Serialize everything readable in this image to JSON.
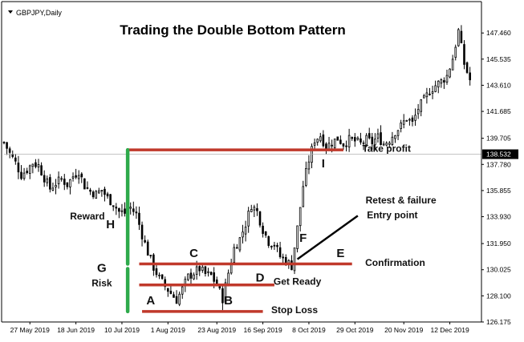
{
  "chart_data": {
    "type": "candlestick",
    "symbol_label": "GBPJPY,Daily",
    "title": "Trading the Double Bottom Pattern",
    "ylim": [
      126.175,
      149.3
    ],
    "xlim": [
      0,
      166
    ],
    "y_ticks": [
      "147.460",
      "145.535",
      "143.610",
      "141.685",
      "139.705",
      "137.780",
      "135.855",
      "133.930",
      "131.950",
      "130.025",
      "128.100",
      "126.175"
    ],
    "x_ticks": [
      {
        "x": 9,
        "label": "27 May 2019"
      },
      {
        "x": 25,
        "label": "18 Jun 2019"
      },
      {
        "x": 41,
        "label": "10 Jul 2019"
      },
      {
        "x": 57,
        "label": "1 Aug 2019"
      },
      {
        "x": 74,
        "label": "23 Aug 2019"
      },
      {
        "x": 90,
        "label": "16 Sep 2019"
      },
      {
        "x": 106,
        "label": "8 Oct 2019"
      },
      {
        "x": 122,
        "label": "29 Oct 2019"
      },
      {
        "x": 139,
        "label": "20 Nov 2019"
      },
      {
        "x": 155,
        "label": "12 Dec 2019"
      }
    ],
    "current_price": "138.532",
    "current_price_value": 138.532,
    "close_series": [
      {
        "x": 0,
        "y": 139.4
      },
      {
        "x": 2,
        "y": 138.6
      },
      {
        "x": 4,
        "y": 137.9
      },
      {
        "x": 6,
        "y": 137.0
      },
      {
        "x": 8,
        "y": 137.4
      },
      {
        "x": 10,
        "y": 137.9
      },
      {
        "x": 12,
        "y": 137.7
      },
      {
        "x": 14,
        "y": 136.8
      },
      {
        "x": 16,
        "y": 136.0
      },
      {
        "x": 18,
        "y": 136.4
      },
      {
        "x": 20,
        "y": 136.7
      },
      {
        "x": 22,
        "y": 136.3
      },
      {
        "x": 24,
        "y": 136.9
      },
      {
        "x": 26,
        "y": 137.3
      },
      {
        "x": 28,
        "y": 136.2
      },
      {
        "x": 30,
        "y": 135.8
      },
      {
        "x": 32,
        "y": 135.6
      },
      {
        "x": 34,
        "y": 135.9
      },
      {
        "x": 36,
        "y": 135.3
      },
      {
        "x": 38,
        "y": 134.9
      },
      {
        "x": 40,
        "y": 134.3
      },
      {
        "x": 42,
        "y": 134.2
      },
      {
        "x": 44,
        "y": 134.6
      },
      {
        "x": 46,
        "y": 134.1
      },
      {
        "x": 48,
        "y": 132.6
      },
      {
        "x": 50,
        "y": 131.3
      },
      {
        "x": 52,
        "y": 130.2
      },
      {
        "x": 54,
        "y": 129.4
      },
      {
        "x": 56,
        "y": 128.8
      },
      {
        "x": 58,
        "y": 128.3
      },
      {
        "x": 60,
        "y": 127.8
      },
      {
        "x": 62,
        "y": 128.6
      },
      {
        "x": 64,
        "y": 129.5
      },
      {
        "x": 66,
        "y": 129.8
      },
      {
        "x": 68,
        "y": 130.1
      },
      {
        "x": 70,
        "y": 129.7
      },
      {
        "x": 72,
        "y": 129.6
      },
      {
        "x": 74,
        "y": 128.9
      },
      {
        "x": 76,
        "y": 127.9
      },
      {
        "x": 78,
        "y": 129.8
      },
      {
        "x": 80,
        "y": 131.6
      },
      {
        "x": 82,
        "y": 132.3
      },
      {
        "x": 84,
        "y": 133.4
      },
      {
        "x": 86,
        "y": 134.8
      },
      {
        "x": 88,
        "y": 134.3
      },
      {
        "x": 90,
        "y": 133.0
      },
      {
        "x": 92,
        "y": 132.1
      },
      {
        "x": 94,
        "y": 131.9
      },
      {
        "x": 96,
        "y": 131.0
      },
      {
        "x": 98,
        "y": 130.7
      },
      {
        "x": 100,
        "y": 130.3
      },
      {
        "x": 102,
        "y": 133.1
      },
      {
        "x": 104,
        "y": 136.2
      },
      {
        "x": 106,
        "y": 138.1
      },
      {
        "x": 108,
        "y": 139.6
      },
      {
        "x": 110,
        "y": 139.9
      },
      {
        "x": 112,
        "y": 139.1
      },
      {
        "x": 114,
        "y": 139.4
      },
      {
        "x": 116,
        "y": 139.7
      },
      {
        "x": 118,
        "y": 139.3
      },
      {
        "x": 120,
        "y": 139.6
      },
      {
        "x": 122,
        "y": 139.5
      },
      {
        "x": 124,
        "y": 139.3
      },
      {
        "x": 126,
        "y": 139.6
      },
      {
        "x": 128,
        "y": 139.4
      },
      {
        "x": 130,
        "y": 139.8
      },
      {
        "x": 132,
        "y": 139.3
      },
      {
        "x": 134,
        "y": 139.6
      },
      {
        "x": 136,
        "y": 140.2
      },
      {
        "x": 138,
        "y": 140.6
      },
      {
        "x": 140,
        "y": 141.2
      },
      {
        "x": 142,
        "y": 140.8
      },
      {
        "x": 144,
        "y": 141.9
      },
      {
        "x": 146,
        "y": 142.5
      },
      {
        "x": 148,
        "y": 143.2
      },
      {
        "x": 150,
        "y": 143.6
      },
      {
        "x": 152,
        "y": 143.9
      },
      {
        "x": 154,
        "y": 144.3
      },
      {
        "x": 156,
        "y": 145.6
      },
      {
        "x": 158,
        "y": 147.6
      },
      {
        "x": 160,
        "y": 145.2
      },
      {
        "x": 162,
        "y": 144.0
      }
    ],
    "horizontal_lines": [
      {
        "name": "take-profit-line",
        "y": 138.85,
        "x1": 43,
        "x2": 118,
        "color": "#c0392b"
      },
      {
        "name": "confirmation-line",
        "y": 130.45,
        "x1": 47,
        "x2": 121,
        "color": "#c0392b"
      },
      {
        "name": "get-ready-line",
        "y": 128.9,
        "x1": 47,
        "x2": 94,
        "color": "#c0392b"
      },
      {
        "name": "stop-loss-line",
        "y": 126.95,
        "x1": 48,
        "x2": 90,
        "color": "#c0392b"
      }
    ],
    "vertical_bars": [
      {
        "name": "reward-bar",
        "x": 43,
        "y1": 138.85,
        "y2": 130.45,
        "color": "#2eaa4b"
      },
      {
        "name": "risk-bar",
        "x": 43,
        "y1": 130.1,
        "y2": 126.95,
        "color": "#2eaa4b"
      }
    ],
    "trend_line": {
      "x1": 102,
      "y1": 130.8,
      "x2": 123,
      "y2": 134.0,
      "color": "#000000"
    },
    "annotations": [
      {
        "text": "A",
        "x": 51,
        "y": 127.7,
        "size": 15
      },
      {
        "text": "B",
        "x": 78,
        "y": 127.7,
        "size": 15
      },
      {
        "text": "C",
        "x": 66,
        "y": 131.2,
        "size": 15
      },
      {
        "text": "D",
        "x": 89,
        "y": 129.4,
        "size": 15
      },
      {
        "text": "E",
        "x": 117,
        "y": 131.2,
        "size": 15
      },
      {
        "text": "F",
        "x": 104,
        "y": 132.3,
        "size": 15
      },
      {
        "text": "G",
        "x": 34,
        "y": 130.1,
        "size": 15
      },
      {
        "text": "H",
        "x": 37,
        "y": 133.3,
        "size": 15
      },
      {
        "text": "I",
        "x": 111,
        "y": 137.8,
        "size": 15
      },
      {
        "text": "Reward",
        "x": 29,
        "y": 133.9,
        "size": 12
      },
      {
        "text": "Risk",
        "x": 34,
        "y": 129.0,
        "size": 12
      },
      {
        "text": "Take profit",
        "x": 133,
        "y": 138.9,
        "size": 12
      },
      {
        "text": "Confirmation",
        "x": 136,
        "y": 130.5,
        "size": 12
      },
      {
        "text": "Get Ready",
        "x": 102,
        "y": 129.1,
        "size": 12
      },
      {
        "text": "Stop Loss",
        "x": 101,
        "y": 127.0,
        "size": 12
      },
      {
        "text": "Retest & failure",
        "x": 138,
        "y": 135.1,
        "size": 12
      },
      {
        "text": "Entry point",
        "x": 135,
        "y": 134.0,
        "size": 12
      }
    ],
    "colors": {
      "candle": "#000000",
      "axis": "#000000",
      "price_box": "#000000",
      "current_price_line": "#b0b0b0"
    }
  }
}
